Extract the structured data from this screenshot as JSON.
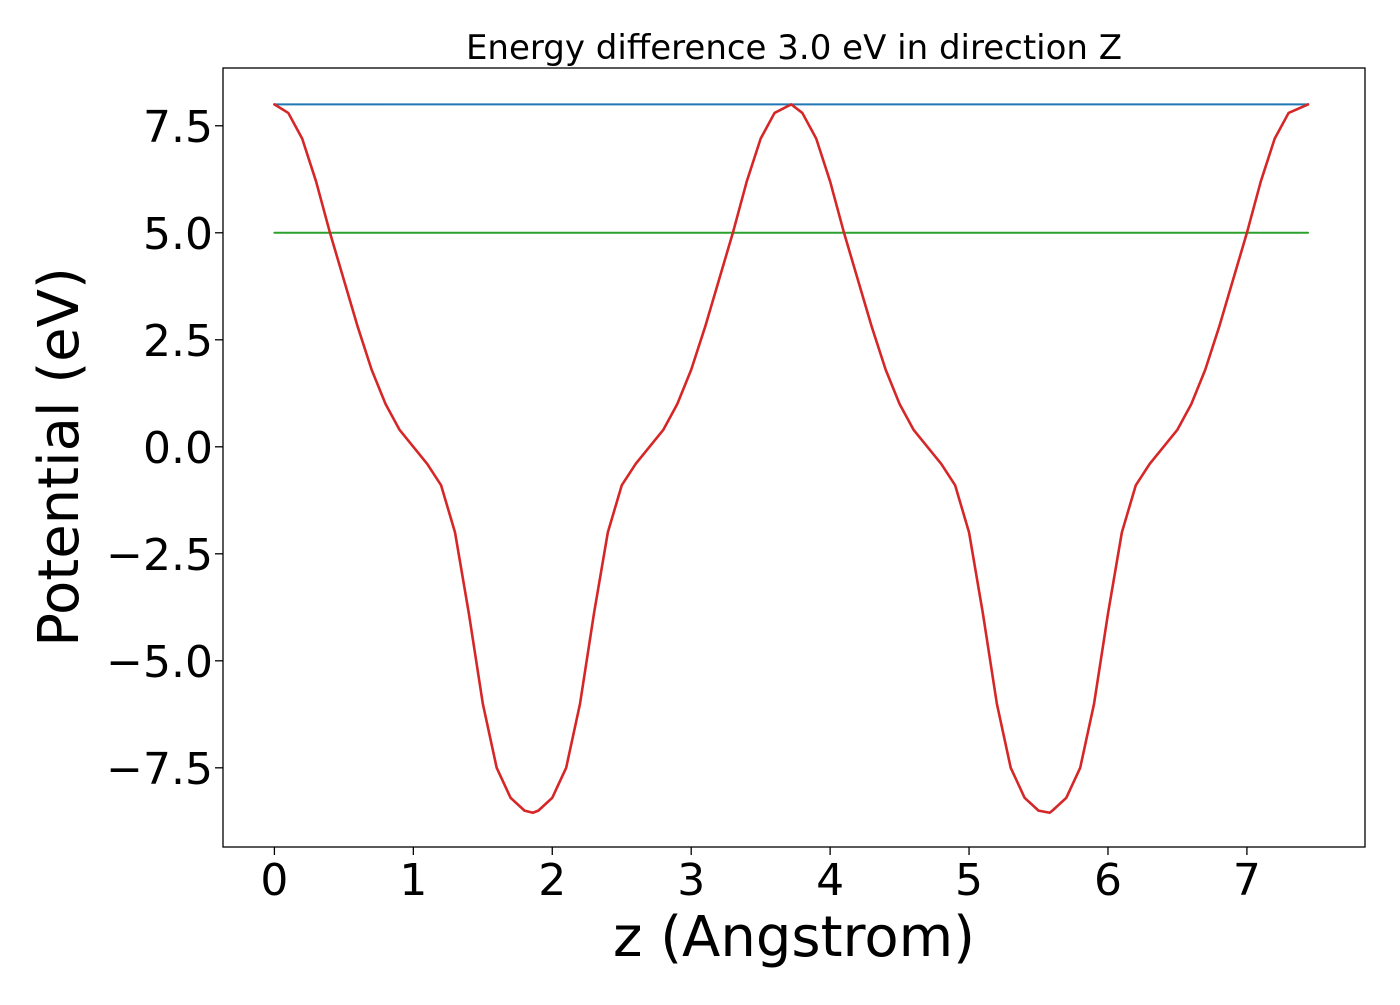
{
  "chart_data": {
    "type": "line",
    "title": "Energy difference 3.0 eV in direction Z",
    "xlabel": "z (Angstrom)",
    "ylabel": "Potential (eV)",
    "xlim": [
      -0.37,
      7.85
    ],
    "ylim": [
      -9.35,
      8.85
    ],
    "xticks": [
      0,
      1,
      2,
      3,
      4,
      5,
      6,
      7
    ],
    "xtick_labels": [
      "0",
      "1",
      "2",
      "3",
      "4",
      "5",
      "6",
      "7"
    ],
    "yticks": [
      7.5,
      5.0,
      2.5,
      0.0,
      -2.5,
      -5.0,
      -7.5
    ],
    "ytick_labels": [
      "7.5",
      "5.0",
      "2.5",
      "0.0",
      "−2.5",
      "−5.0",
      "−7.5"
    ],
    "grid": false,
    "legend": "none",
    "series": [
      {
        "color": "#1f77b4",
        "x": [
          0,
          7.44
        ],
        "y": [
          8.0,
          8.0
        ]
      },
      {
        "color": "#2ca02c",
        "x": [
          0,
          7.44
        ],
        "y": [
          5.0,
          5.0
        ]
      },
      {
        "color": "#d62728",
        "x": [
          0,
          0.1,
          0.2,
          0.3,
          0.4,
          0.5,
          0.6,
          0.7,
          0.8,
          0.9,
          1.0,
          1.1,
          1.2,
          1.3,
          1.4,
          1.5,
          1.6,
          1.7,
          1.8,
          1.86,
          1.9,
          2.0,
          2.1,
          2.2,
          2.3,
          2.4,
          2.5,
          2.6,
          2.7,
          2.8,
          2.9,
          3.0,
          3.1,
          3.2,
          3.3,
          3.4,
          3.5,
          3.6,
          3.72,
          3.8,
          3.9,
          4.0,
          4.1,
          4.2,
          4.3,
          4.4,
          4.5,
          4.6,
          4.7,
          4.8,
          4.9,
          5.0,
          5.1,
          5.2,
          5.3,
          5.4,
          5.5,
          5.58,
          5.6,
          5.7,
          5.8,
          5.9,
          6.0,
          6.1,
          6.2,
          6.3,
          6.4,
          6.5,
          6.6,
          6.7,
          6.8,
          6.9,
          7.0,
          7.1,
          7.2,
          7.3,
          7.44
        ],
        "y": [
          8.0,
          7.8,
          7.2,
          6.2,
          5.0,
          3.9,
          2.8,
          1.8,
          1.0,
          0.4,
          0.0,
          -0.4,
          -0.9,
          -2.0,
          -3.9,
          -6.0,
          -7.5,
          -8.2,
          -8.5,
          -8.55,
          -8.5,
          -8.2,
          -7.5,
          -6.0,
          -3.9,
          -2.0,
          -0.9,
          -0.4,
          0.0,
          0.4,
          1.0,
          1.8,
          2.8,
          3.9,
          5.0,
          6.2,
          7.2,
          7.8,
          8.0,
          7.8,
          7.2,
          6.2,
          5.0,
          3.9,
          2.8,
          1.8,
          1.0,
          0.4,
          0.0,
          -0.4,
          -0.9,
          -2.0,
          -3.9,
          -6.0,
          -7.5,
          -8.2,
          -8.5,
          -8.55,
          -8.5,
          -8.2,
          -7.5,
          -6.0,
          -3.9,
          -2.0,
          -0.9,
          -0.4,
          0.0,
          0.4,
          1.0,
          1.8,
          2.8,
          3.9,
          5.0,
          6.2,
          7.2,
          7.8,
          8.0
        ]
      }
    ]
  }
}
